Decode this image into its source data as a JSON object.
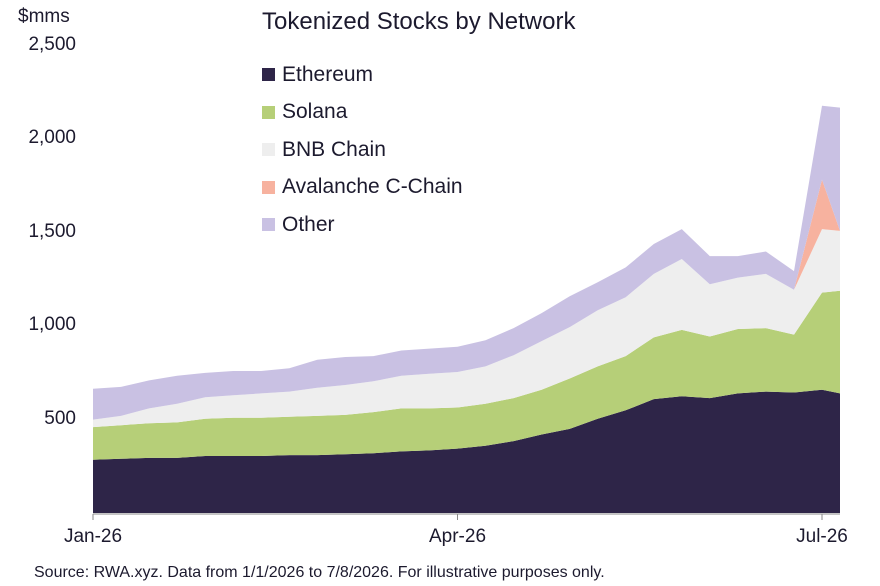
{
  "unit_label": "$mms",
  "source": "Source: RWA.xyz. Data from 1/1/2026 to 7/8/2026. For illustrative purposes only.",
  "chart_data": {
    "type": "area",
    "stacked": true,
    "title": "Tokenized Stocks by Network",
    "xlabel": "",
    "ylabel": "",
    "ylim": [
      0,
      2500
    ],
    "y_ticks": [
      500,
      1000,
      1500,
      2000,
      2500
    ],
    "y_tick_labels": [
      "500",
      "1,000",
      "1,500",
      "2,000",
      "2,500"
    ],
    "x_tick_labels": [
      {
        "label": "Jan-26",
        "week": 0
      },
      {
        "label": "Apr-26",
        "week": 13
      },
      {
        "label": "Jul-26",
        "week": 26
      }
    ],
    "grid": false,
    "legend_position": "top-center",
    "x_weeks": [
      0,
      1,
      2,
      3,
      4,
      5,
      6,
      7,
      8,
      9,
      10,
      11,
      12,
      13,
      14,
      15,
      16,
      17,
      18,
      19,
      20,
      21,
      22,
      23,
      24,
      25,
      26,
      27
    ],
    "series": [
      {
        "name": "Ethereum",
        "color": "#2e2548",
        "values": [
          285,
          290,
          295,
          295,
          305,
          305,
          305,
          310,
          310,
          315,
          320,
          330,
          335,
          345,
          360,
          385,
          420,
          450,
          505,
          550,
          610,
          625,
          615,
          640,
          650,
          645,
          660,
          640
        ]
      },
      {
        "name": "Solana",
        "color": "#b6cf78",
        "values": [
          175,
          180,
          185,
          190,
          200,
          205,
          205,
          205,
          210,
          210,
          220,
          230,
          225,
          220,
          225,
          230,
          240,
          270,
          280,
          290,
          330,
          355,
          330,
          345,
          340,
          310,
          520,
          550
        ]
      },
      {
        "name": "BNB Chain",
        "color": "#eeeeee",
        "values": [
          40,
          50,
          80,
          100,
          115,
          120,
          130,
          135,
          150,
          160,
          165,
          175,
          185,
          190,
          200,
          230,
          260,
          275,
          300,
          315,
          340,
          380,
          280,
          275,
          290,
          240,
          340,
          320
        ]
      },
      {
        "name": "Avalanche C-Chain",
        "color": "#f7b29f",
        "values": [
          0,
          0,
          0,
          0,
          0,
          0,
          0,
          0,
          0,
          0,
          0,
          0,
          0,
          0,
          0,
          0,
          0,
          0,
          0,
          0,
          0,
          0,
          0,
          0,
          0,
          0,
          265,
          0
        ]
      },
      {
        "name": "Other",
        "color": "#c9c1e3",
        "values": [
          165,
          155,
          150,
          150,
          130,
          130,
          120,
          125,
          150,
          150,
          135,
          135,
          135,
          135,
          140,
          145,
          150,
          165,
          150,
          160,
          160,
          160,
          150,
          115,
          120,
          100,
          395,
          660
        ]
      }
    ]
  }
}
